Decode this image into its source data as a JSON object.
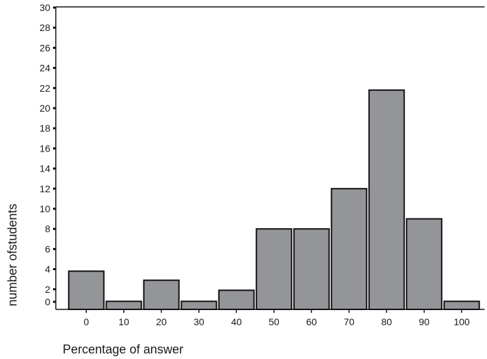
{
  "chart_data": {
    "type": "bar",
    "categories": [
      "0",
      "10",
      "20",
      "30",
      "40",
      "50",
      "60",
      "70",
      "80",
      "90",
      "100"
    ],
    "values": [
      3.8,
      0.8,
      2.9,
      0.8,
      1.9,
      8,
      8,
      12,
      21.8,
      9,
      0.8
    ],
    "xlabel": "Percentage of answer",
    "ylabel": "number ofstudents",
    "ylim": [
      0,
      30
    ],
    "yticks": [
      "0",
      "2",
      "4",
      "6",
      "8",
      "10",
      "12",
      "14",
      "16",
      "18",
      "20",
      "22",
      "24",
      "26",
      "28",
      "30"
    ],
    "grid": false,
    "bar_color": "#939598",
    "bar_edge_color": "#111111"
  }
}
